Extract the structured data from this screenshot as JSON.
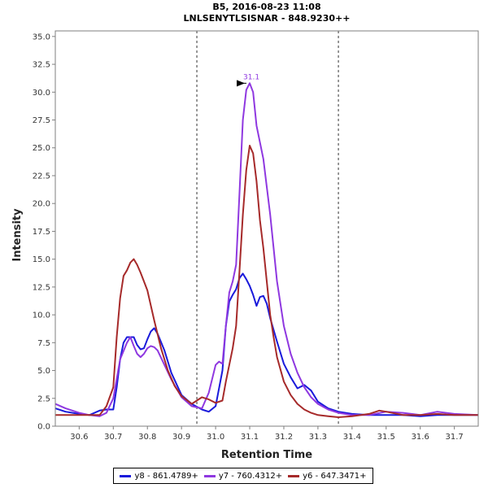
{
  "chart_data": {
    "type": "line",
    "title": "B5, 2016-08-23 11:08",
    "subtitle": "LNLSENYTLSISNAR - 848.9230++",
    "xlabel": "Retention Time",
    "ylabel": "Intensity",
    "xlim": [
      30.53,
      31.77
    ],
    "ylim": [
      0,
      35.5
    ],
    "x_ticks": [
      "30.6",
      "30.7",
      "30.8",
      "30.9",
      "31.0",
      "31.1",
      "31.2",
      "31.3",
      "31.4",
      "31.5",
      "31.6",
      "31.7"
    ],
    "y_ticks": [
      "0.0",
      "2.5",
      "5.0",
      "7.5",
      "10.0",
      "12.5",
      "15.0",
      "17.5",
      "20.0",
      "22.5",
      "25.0",
      "27.5",
      "30.0",
      "32.5",
      "35.0"
    ],
    "grid": false,
    "legend_position": "bottom",
    "boundaries": [
      30.945,
      31.36
    ],
    "peak_annotation": {
      "label": "31.1",
      "x": 31.1,
      "y": 30.8
    },
    "series": [
      {
        "name": "y8 - 861.4789+",
        "color": "#1a1adb",
        "x": [
          30.53,
          30.56,
          30.6,
          30.63,
          30.66,
          30.68,
          30.7,
          30.71,
          30.72,
          30.73,
          30.74,
          30.76,
          30.77,
          30.78,
          30.79,
          30.8,
          30.81,
          30.82,
          30.83,
          30.85,
          30.87,
          30.9,
          30.93,
          30.96,
          30.98,
          31.0,
          31.02,
          31.03,
          31.04,
          31.05,
          31.06,
          31.07,
          31.08,
          31.09,
          31.1,
          31.11,
          31.12,
          31.13,
          31.14,
          31.15,
          31.16,
          31.18,
          31.2,
          31.22,
          31.24,
          31.26,
          31.28,
          31.3,
          31.33,
          31.36,
          31.4,
          31.45,
          31.5,
          31.55,
          31.6,
          31.65,
          31.7,
          31.77
        ],
        "y": [
          1.6,
          1.3,
          1.1,
          1.0,
          1.4,
          1.5,
          1.5,
          3.5,
          6.0,
          7.5,
          8.0,
          8.0,
          7.3,
          6.9,
          7.0,
          7.8,
          8.5,
          8.8,
          8.3,
          6.8,
          4.8,
          2.8,
          2.0,
          1.5,
          1.3,
          1.8,
          5.0,
          9.0,
          11.2,
          11.8,
          12.3,
          13.3,
          13.7,
          13.2,
          12.6,
          11.8,
          10.8,
          11.6,
          11.7,
          11.0,
          9.7,
          7.6,
          5.6,
          4.4,
          3.4,
          3.7,
          3.2,
          2.2,
          1.6,
          1.3,
          1.1,
          1.0,
          1.0,
          1.0,
          0.9,
          1.0,
          1.0,
          1.0
        ]
      },
      {
        "name": "y7 - 760.4312+",
        "color": "#8f38e0",
        "x": [
          30.53,
          30.56,
          30.6,
          30.63,
          30.66,
          30.68,
          30.7,
          30.72,
          30.74,
          30.75,
          30.76,
          30.77,
          30.78,
          30.79,
          30.8,
          30.81,
          30.82,
          30.83,
          30.85,
          30.87,
          30.9,
          30.93,
          30.96,
          30.98,
          31.0,
          31.01,
          31.02,
          31.03,
          31.04,
          31.05,
          31.06,
          31.07,
          31.08,
          31.09,
          31.1,
          31.11,
          31.12,
          31.13,
          31.14,
          31.15,
          31.16,
          31.17,
          31.18,
          31.2,
          31.22,
          31.24,
          31.26,
          31.28,
          31.3,
          31.33,
          31.36,
          31.4,
          31.45,
          31.5,
          31.55,
          31.6,
          31.65,
          31.7,
          31.77
        ],
        "y": [
          2.0,
          1.6,
          1.2,
          1.0,
          0.9,
          1.2,
          2.5,
          6.0,
          7.5,
          8.0,
          7.2,
          6.5,
          6.2,
          6.5,
          7.0,
          7.2,
          7.1,
          6.8,
          5.5,
          4.2,
          2.6,
          1.8,
          1.6,
          3.0,
          5.5,
          5.8,
          5.6,
          9.0,
          12.0,
          13.0,
          14.5,
          21.0,
          27.5,
          30.2,
          30.8,
          30.0,
          27.0,
          25.5,
          24.0,
          21.5,
          19.0,
          16.0,
          13.0,
          9.0,
          6.5,
          4.8,
          3.5,
          2.6,
          2.0,
          1.5,
          1.2,
          1.0,
          1.0,
          1.3,
          1.2,
          1.0,
          1.3,
          1.1,
          1.0
        ]
      },
      {
        "name": "y6 - 647.3471+",
        "color": "#a62a2a",
        "x": [
          30.53,
          30.56,
          30.6,
          30.63,
          30.66,
          30.68,
          30.7,
          30.71,
          30.72,
          30.73,
          30.74,
          30.75,
          30.76,
          30.77,
          30.78,
          30.79,
          30.8,
          30.82,
          30.84,
          30.86,
          30.88,
          30.9,
          30.93,
          30.96,
          30.98,
          31.0,
          31.02,
          31.03,
          31.04,
          31.05,
          31.06,
          31.07,
          31.08,
          31.09,
          31.1,
          31.11,
          31.12,
          31.13,
          31.14,
          31.15,
          31.16,
          31.17,
          31.18,
          31.2,
          31.22,
          31.24,
          31.26,
          31.28,
          31.3,
          31.33,
          31.36,
          31.4,
          31.45,
          31.48,
          31.5,
          31.55,
          31.6,
          31.65,
          31.7,
          31.77
        ],
        "y": [
          1.0,
          1.0,
          1.0,
          1.0,
          1.0,
          1.8,
          3.5,
          8.0,
          11.5,
          13.5,
          14.0,
          14.7,
          15.0,
          14.5,
          13.8,
          13.0,
          12.2,
          9.5,
          7.0,
          5.0,
          3.6,
          2.7,
          2.0,
          2.6,
          2.4,
          2.1,
          2.3,
          4.0,
          5.5,
          7.0,
          9.0,
          14.0,
          19.0,
          23.0,
          25.2,
          24.5,
          22.0,
          18.5,
          16.0,
          13.0,
          10.0,
          8.0,
          6.2,
          4.0,
          2.8,
          2.0,
          1.5,
          1.2,
          1.0,
          0.9,
          0.8,
          0.9,
          1.1,
          1.4,
          1.3,
          1.0,
          1.0,
          1.1,
          1.0,
          1.0
        ]
      }
    ]
  }
}
